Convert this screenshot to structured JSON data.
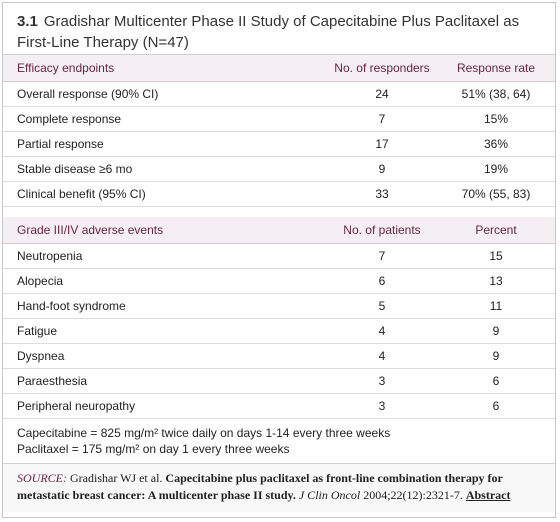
{
  "header": {
    "number": "3.1",
    "title": "Gradishar Multicenter Phase II Study of Capecitabine Plus Paclitaxel as First-Line Therapy (N=47)"
  },
  "tables": [
    {
      "columns": [
        "Efficacy endpoints",
        "No. of responders",
        "Response rate"
      ],
      "rows": [
        [
          "Overall response (90% CI)",
          "24",
          "51% (38, 64)"
        ],
        [
          "Complete response",
          "7",
          "15%"
        ],
        [
          "Partial response",
          "17",
          "36%"
        ],
        [
          "Stable disease ≥6 mo",
          "9",
          "19%"
        ],
        [
          "Clinical benefit (95% CI)",
          "33",
          "70% (55, 83)"
        ]
      ]
    },
    {
      "columns": [
        "Grade III/IV adverse events",
        "No. of patients",
        "Percent"
      ],
      "rows": [
        [
          "Neutropenia",
          "7",
          "15"
        ],
        [
          "Alopecia",
          "6",
          "13"
        ],
        [
          "Hand-foot syndrome",
          "5",
          "11"
        ],
        [
          "Fatigue",
          "4",
          "9"
        ],
        [
          "Dyspnea",
          "4",
          "9"
        ],
        [
          "Paraesthesia",
          "3",
          "6"
        ],
        [
          "Peripheral neuropathy",
          "3",
          "6"
        ]
      ]
    }
  ],
  "notes": [
    "Capecitabine = 825 mg/m² twice daily on days 1-14 every three weeks",
    "Paclitaxel = 175 mg/m² on day 1 every three weeks"
  ],
  "source": {
    "label": "SOURCE:",
    "authors": "Gradishar WJ et al.",
    "title": "Capecitabine plus paclitaxel as front-line combination therapy for metastatic breast cancer: A multicenter phase II study.",
    "journal": "J Clin Oncol",
    "citation": "2004;22(12):2321-7.",
    "link": "Abstract"
  }
}
